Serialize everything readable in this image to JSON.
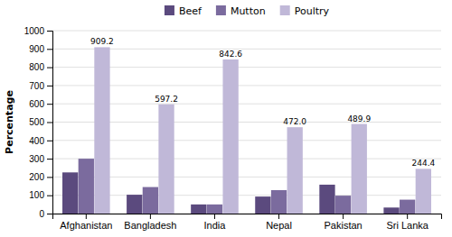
{
  "chart_data": {
    "type": "bar",
    "ylabel": "Percentage",
    "categories": [
      "Afghanistan",
      "Bangladesh",
      "India",
      "Nepal",
      "Pakistan",
      "Sri Lanka"
    ],
    "series": [
      {
        "name": "Beef",
        "color": "#5b4a7e",
        "values": [
          225,
          103,
          50,
          93,
          158,
          33
        ]
      },
      {
        "name": "Mutton",
        "color": "#7b6b9e",
        "values": [
          300,
          145,
          50,
          128,
          98,
          76
        ]
      },
      {
        "name": "Poultry",
        "color": "#c0b8d8",
        "values": [
          909.2,
          597.2,
          842.6,
          472.0,
          489.9,
          244.4
        ],
        "data_labels": true,
        "value_labels": [
          "909.2",
          "597.2",
          "842.6",
          "472.0",
          "489.9",
          "244.4"
        ]
      }
    ],
    "ylim": [
      0,
      1000
    ],
    "yticks": [
      0,
      100,
      200,
      300,
      400,
      500,
      600,
      700,
      800,
      900,
      1000
    ],
    "grid": true,
    "legend": "top"
  }
}
